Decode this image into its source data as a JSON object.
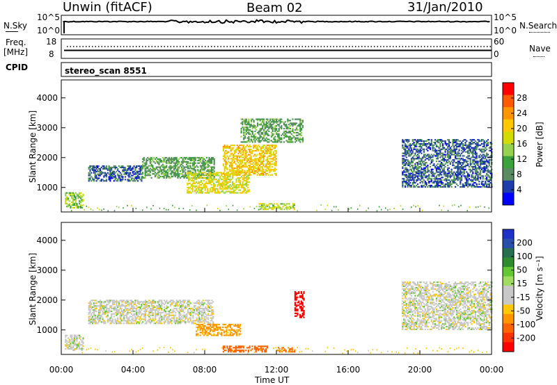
{
  "header": {
    "station": "Unwin (fitACF)",
    "beam": "Beam 02",
    "date": "31/Jan/2010"
  },
  "noise_panel": {
    "left_label": "N.Sky",
    "left_ticks": [
      "10^5",
      "10^0"
    ],
    "right_ticks": [
      "10^5",
      "10^0"
    ],
    "right_label": "N.Search"
  },
  "freq_panel": {
    "left_label_line1": "Freq.",
    "left_label_line2": "[MHz]",
    "left_ticks": [
      "18",
      "8"
    ],
    "right_ticks": [
      "60",
      "0"
    ],
    "right_label": "Nave"
  },
  "cpid_panel": {
    "label": "CPID",
    "text": "stereo_scan 8551"
  },
  "power_colorbar": {
    "label": "Power [dB]",
    "ticks": [
      "28",
      "24",
      "20",
      "16",
      "12",
      "8",
      "4"
    ],
    "colors": [
      "#ff0000",
      "#ff5a00",
      "#ff9600",
      "#ffc800",
      "#d2dc00",
      "#96d250",
      "#3ca03c",
      "#5a8c64",
      "#1e3caa",
      "#0000ff"
    ]
  },
  "velocity_colorbar": {
    "label": "Velocity [m s⁻¹]",
    "ticks": [
      "200",
      "100",
      "50",
      "15",
      "-15",
      "-50",
      "-100",
      "-200"
    ],
    "colors": [
      "#1e32c8",
      "#2850aa",
      "#286e50",
      "#2e8b2e",
      "#64c832",
      "#a0dc64",
      "#c8c8c8",
      "#c8c8c8",
      "#ffc800",
      "#ff9600",
      "#ff6400",
      "#ff3200",
      "#ff0000"
    ]
  },
  "xaxis": {
    "title": "Time UT",
    "ticks": [
      "00:00",
      "04:00",
      "08:00",
      "12:00",
      "16:00",
      "20:00",
      "00:00"
    ]
  },
  "chart_data": [
    {
      "type": "heatmap",
      "title": "Beam 02",
      "parameter": "Power",
      "ylabel": "Slant Range [km]",
      "xlabel": "",
      "x_range_hours": [
        0,
        24
      ],
      "ylim": [
        180,
        4600
      ],
      "yticks": [
        1000,
        2000,
        3000,
        4000
      ],
      "color_scale": [
        4,
        8,
        12,
        16,
        20,
        24,
        28
      ],
      "echo_regions": [
        {
          "t_start": 0.2,
          "t_end": 1.2,
          "range_min": 300,
          "range_max": 800,
          "typical_power": 16
        },
        {
          "t_start": 1.5,
          "t_end": 4.5,
          "range_min": 1200,
          "range_max": 1700,
          "typical_power": 8
        },
        {
          "t_start": 4.5,
          "t_end": 8.5,
          "range_min": 1300,
          "range_max": 2000,
          "typical_power": 12
        },
        {
          "t_start": 7.0,
          "t_end": 10.5,
          "range_min": 800,
          "range_max": 1500,
          "typical_power": 20
        },
        {
          "t_start": 9.0,
          "t_end": 12.0,
          "range_min": 1400,
          "range_max": 2400,
          "typical_power": 22
        },
        {
          "t_start": 10.0,
          "t_end": 13.5,
          "range_min": 2500,
          "range_max": 3300,
          "typical_power": 12
        },
        {
          "t_start": 11.0,
          "t_end": 13.0,
          "range_min": 250,
          "range_max": 450,
          "typical_power": 18
        },
        {
          "t_start": 19.0,
          "t_end": 24.0,
          "range_min": 1000,
          "range_max": 2600,
          "typical_power": 8
        }
      ]
    },
    {
      "type": "heatmap",
      "parameter": "Velocity",
      "ylabel": "Slant Range [km]",
      "xlabel": "Time UT",
      "x_range_hours": [
        0,
        24
      ],
      "ylim": [
        180,
        4600
      ],
      "yticks": [
        1000,
        2000,
        3000,
        4000
      ],
      "color_scale": [
        -200,
        -100,
        -50,
        -15,
        15,
        50,
        100,
        200
      ],
      "echo_regions": [
        {
          "t_start": 0.2,
          "t_end": 1.2,
          "range_min": 300,
          "range_max": 800,
          "typical_velocity": 0
        },
        {
          "t_start": 1.5,
          "t_end": 8.5,
          "range_min": 1200,
          "range_max": 2000,
          "typical_velocity": 0
        },
        {
          "t_start": 7.5,
          "t_end": 10.0,
          "range_min": 800,
          "range_max": 1200,
          "typical_velocity": -60
        },
        {
          "t_start": 9.0,
          "t_end": 11.5,
          "range_min": 250,
          "range_max": 450,
          "typical_velocity": -120
        },
        {
          "t_start": 12.0,
          "t_end": 13.0,
          "range_min": 250,
          "range_max": 400,
          "typical_velocity": -100
        },
        {
          "t_start": 13.0,
          "t_end": 13.5,
          "range_min": 1400,
          "range_max": 2300,
          "typical_velocity": -200
        },
        {
          "t_start": 19.0,
          "t_end": 24.0,
          "range_min": 1000,
          "range_max": 2600,
          "typical_velocity": 0
        }
      ]
    }
  ]
}
